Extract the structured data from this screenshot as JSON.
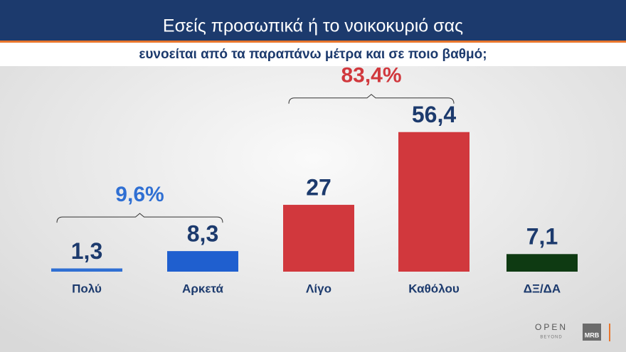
{
  "chart_data": {
    "type": "bar",
    "title": "Εσείς προσωπικά ή το νοικοκυριό σας",
    "subtitle": "ευνοείται από τα παραπάνω μέτρα και σε ποιο βαθμό;",
    "categories": [
      "Πολύ",
      "Αρκετά",
      "Λίγο",
      "Καθόλου",
      "ΔΞ/ΔΑ"
    ],
    "values": [
      1.3,
      8.3,
      27,
      56.4,
      7.1
    ],
    "value_labels": [
      "1,3",
      "8,3",
      "27",
      "56,4",
      "7,1"
    ],
    "colors": [
      "#2f6fd3",
      "#1f5fcf",
      "#d1383d",
      "#d1383d",
      "#0e3a12"
    ],
    "annotations": [
      {
        "text": "9,6%",
        "color": "#2f6fd3"
      },
      {
        "text": "83,4%",
        "color": "#d1383d"
      }
    ]
  },
  "logos": {
    "open": "OPEN",
    "beyond": "BEYOND",
    "mrb": "MRB"
  }
}
